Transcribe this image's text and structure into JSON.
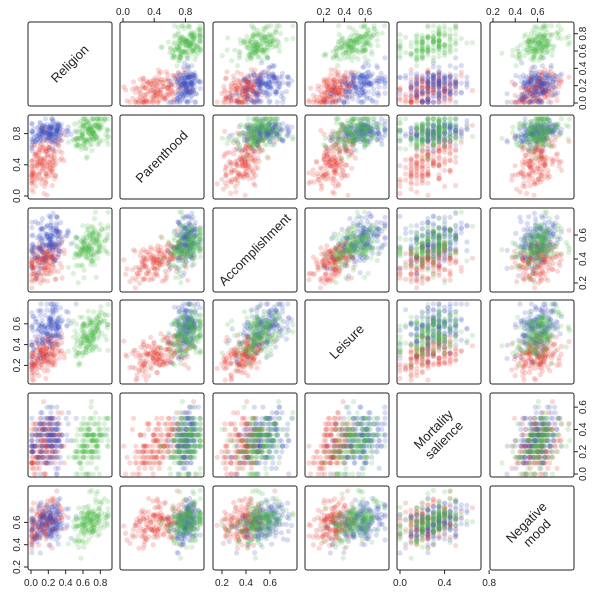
{
  "chart_data": {
    "type": "scatter",
    "subtype": "scatterplot-matrix",
    "title": "",
    "variables": [
      {
        "key": "religion",
        "label": [
          "Religion"
        ],
        "range": [
          0.0,
          0.9
        ]
      },
      {
        "key": "parenthood",
        "label": [
          "Parenthood"
        ],
        "range": [
          0.0,
          1.0
        ]
      },
      {
        "key": "accomplishment",
        "label": [
          "Accomplishment"
        ],
        "range": [
          0.15,
          0.8
        ]
      },
      {
        "key": "leisure",
        "label": [
          "Leisure"
        ],
        "range": [
          0.05,
          0.8
        ]
      },
      {
        "key": "mortality_salience",
        "label": [
          "Mortality",
          "salience"
        ],
        "range": [
          0.0,
          0.7
        ]
      },
      {
        "key": "negative_mood",
        "label": [
          "Negative",
          "mood"
        ],
        "range": [
          0.2,
          0.9
        ]
      }
    ],
    "axis_ticks": [
      {
        "panel": [
          0,
          1
        ],
        "side": "top",
        "values": [
          0.0,
          0.4,
          0.8
        ],
        "labels": [
          "0.0",
          "0.4",
          "0.8"
        ]
      },
      {
        "panel": [
          0,
          3
        ],
        "side": "top",
        "values": [
          0.2,
          0.4,
          0.6
        ],
        "labels": [
          "0.2",
          "0.4",
          "0.6"
        ]
      },
      {
        "panel": [
          0,
          5
        ],
        "side": "top",
        "values": [
          0.2,
          0.4,
          0.6
        ],
        "labels": [
          "0.2",
          "0.4",
          "0.6"
        ]
      },
      {
        "panel": [
          0,
          5
        ],
        "side": "right",
        "values": [
          0.0,
          0.2,
          0.4,
          0.6,
          0.8
        ],
        "labels": [
          "0.0",
          "0.2",
          "0.4",
          "0.6",
          "0.8"
        ]
      },
      {
        "panel": [
          1,
          0
        ],
        "side": "left",
        "values": [
          0.0,
          0.4,
          0.8
        ],
        "labels": [
          "0.0",
          "0.4",
          "0.8"
        ]
      },
      {
        "panel": [
          2,
          5
        ],
        "side": "right",
        "values": [
          0.2,
          0.4,
          0.6
        ],
        "labels": [
          "0.2",
          "0.4",
          "0.6"
        ]
      },
      {
        "panel": [
          3,
          0
        ],
        "side": "left",
        "values": [
          0.2,
          0.4,
          0.6
        ],
        "labels": [
          "0.2",
          "0.4",
          "0.6"
        ]
      },
      {
        "panel": [
          4,
          5
        ],
        "side": "right",
        "values": [
          0.0,
          0.2,
          0.4,
          0.6
        ],
        "labels": [
          "0.0",
          "0.2",
          "0.4",
          "0.6"
        ]
      },
      {
        "panel": [
          5,
          0
        ],
        "side": "left",
        "values": [
          0.2,
          0.4,
          0.6
        ],
        "labels": [
          "0.2",
          "0.4",
          "0.6"
        ]
      },
      {
        "panel": [
          5,
          0
        ],
        "side": "bottom",
        "values": [
          0.0,
          0.2,
          0.4,
          0.6,
          0.8
        ],
        "labels": [
          "0.0",
          "0.2",
          "0.4",
          "0.6",
          "0.8"
        ]
      },
      {
        "panel": [
          5,
          2
        ],
        "side": "bottom",
        "values": [
          0.2,
          0.4,
          0.6
        ],
        "labels": [
          "0.2",
          "0.4",
          "0.6"
        ]
      },
      {
        "panel": [
          5,
          4
        ],
        "side": "bottom",
        "values": [
          0.0,
          0.4,
          0.8
        ],
        "labels": [
          "0.0",
          "0.4",
          "0.8"
        ]
      }
    ],
    "groups": [
      {
        "color": "#e8352f",
        "center": {
          "religion": 0.15,
          "parenthood": 0.45,
          "accomplishment": 0.38,
          "leisure": 0.3,
          "mortality_salience": 0.25,
          "negative_mood": 0.6
        },
        "spread": {
          "religion": 0.1,
          "parenthood": 0.18,
          "accomplishment": 0.1,
          "leisure": 0.1,
          "mortality_salience": 0.12,
          "negative_mood": 0.1
        }
      },
      {
        "color": "#3a4ec2",
        "center": {
          "religion": 0.2,
          "parenthood": 0.82,
          "accomplishment": 0.55,
          "leisure": 0.55,
          "mortality_salience": 0.32,
          "negative_mood": 0.6
        },
        "spread": {
          "religion": 0.12,
          "parenthood": 0.08,
          "accomplishment": 0.1,
          "leisure": 0.12,
          "mortality_salience": 0.13,
          "negative_mood": 0.1
        }
      },
      {
        "color": "#4cb847",
        "center": {
          "religion": 0.68,
          "parenthood": 0.8,
          "accomplishment": 0.5,
          "leisure": 0.48,
          "mortality_salience": 0.28,
          "negative_mood": 0.6
        },
        "spread": {
          "religion": 0.1,
          "parenthood": 0.12,
          "accomplishment": 0.1,
          "leisure": 0.11,
          "mortality_salience": 0.13,
          "negative_mood": 0.1
        }
      }
    ],
    "points_per_group": 160,
    "point_opacity": 0.2,
    "xlabel": "",
    "ylabel": "",
    "grid": false,
    "legend": "none"
  }
}
